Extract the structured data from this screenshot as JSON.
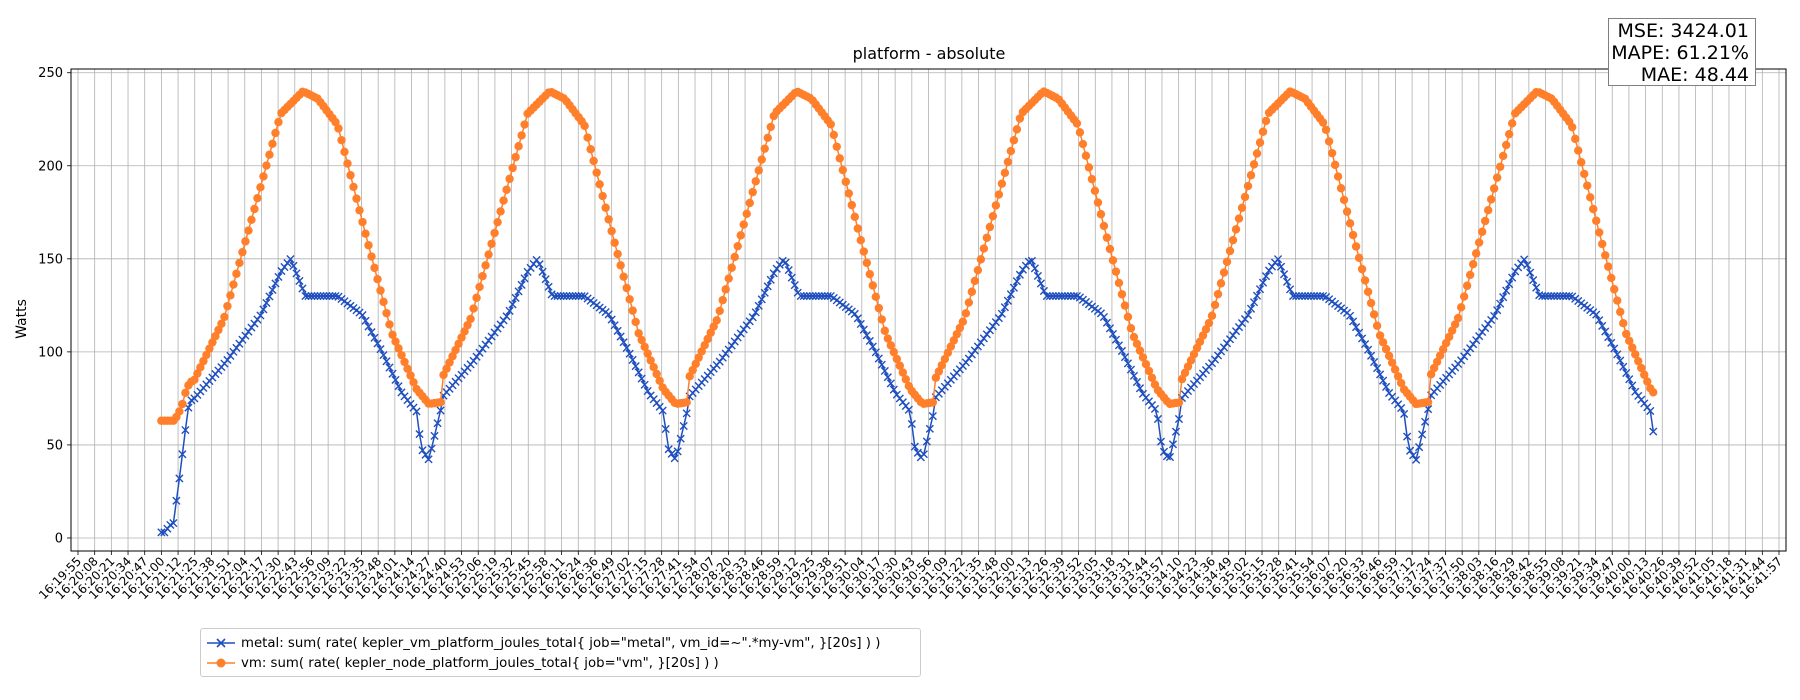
{
  "chart_data": {
    "type": "line",
    "title": "platform - absolute",
    "xlabel": "",
    "ylabel": "Watts",
    "ylim": [
      -7,
      252
    ],
    "yticks": [
      0,
      50,
      100,
      150,
      200,
      250
    ],
    "grid": true,
    "legend_placement": "bottom-left below plot",
    "x_ticks": [
      "16:19:55",
      "16:20:08",
      "16:20:21",
      "16:20:34",
      "16:20:47",
      "16:21:00",
      "16:21:12",
      "16:21:25",
      "16:21:38",
      "16:21:51",
      "16:22:04",
      "16:22:17",
      "16:22:30",
      "16:22:43",
      "16:22:56",
      "16:23:09",
      "16:23:22",
      "16:23:35",
      "16:23:48",
      "16:24:01",
      "16:24:14",
      "16:24:27",
      "16:24:40",
      "16:24:53",
      "16:25:06",
      "16:25:19",
      "16:25:32",
      "16:25:45",
      "16:25:58",
      "16:26:11",
      "16:26:24",
      "16:26:36",
      "16:26:49",
      "16:27:02",
      "16:27:15",
      "16:27:28",
      "16:27:41",
      "16:27:54",
      "16:28:07",
      "16:28:20",
      "16:28:33",
      "16:28:46",
      "16:28:59",
      "16:29:12",
      "16:29:25",
      "16:29:38",
      "16:29:51",
      "16:30:04",
      "16:30:17",
      "16:30:30",
      "16:30:43",
      "16:30:56",
      "16:31:09",
      "16:31:22",
      "16:31:35",
      "16:31:48",
      "16:32:00",
      "16:32:13",
      "16:32:26",
      "16:32:39",
      "16:32:52",
      "16:33:05",
      "16:33:18",
      "16:33:31",
      "16:33:44",
      "16:33:57",
      "16:34:10",
      "16:34:23",
      "16:34:36",
      "16:34:49",
      "16:35:02",
      "16:35:15",
      "16:35:28",
      "16:35:41",
      "16:35:54",
      "16:36:07",
      "16:36:20",
      "16:36:33",
      "16:36:46",
      "16:36:59",
      "16:37:12",
      "16:37:24",
      "16:37:37",
      "16:37:50",
      "16:38:03",
      "16:38:16",
      "16:38:29",
      "16:38:42",
      "16:38:55",
      "16:39:08",
      "16:39:21",
      "16:39:34",
      "16:39:47",
      "16:40:00",
      "16:40:13",
      "16:40:26",
      "16:40:39",
      "16:40:52",
      "16:41:05",
      "16:41:18",
      "16:41:31",
      "16:41:44",
      "16:41:57"
    ],
    "cycle_ticks": 14.8,
    "series": [
      {
        "name": "metal: sum( rate( kepler_vm_platform_joules_total{ job=\"metal\", vm_id=~\".*my-vm\", }[20s] ) )",
        "color": "#1f4fbf",
        "marker": "x",
        "start_tick": 5.0,
        "end_tick": 94.5,
        "startup": [
          3,
          3,
          5,
          7,
          8,
          20,
          32,
          45,
          58,
          70,
          74
        ],
        "cycle_profile": [
          [
            0.0,
            75
          ],
          [
            0.13,
            95
          ],
          [
            0.27,
            120
          ],
          [
            0.35,
            143
          ],
          [
            0.39,
            150
          ],
          [
            0.45,
            130
          ],
          [
            0.58,
            130
          ],
          [
            0.68,
            120
          ],
          [
            0.76,
            100
          ],
          [
            0.84,
            78
          ],
          [
            0.9,
            68
          ],
          [
            0.92,
            48
          ],
          [
            0.95,
            42
          ],
          [
            1.0,
            70
          ]
        ]
      },
      {
        "name": "vm: sum( rate( kepler_node_platform_joules_total{ job=\"vm\", }[20s] ) )",
        "color": "#ff7f2a",
        "marker": "o",
        "start_tick": 5.0,
        "end_tick": 94.5,
        "startup": [
          63,
          63,
          63,
          63,
          63,
          65,
          68,
          72,
          78,
          82,
          84
        ],
        "cycle_profile": [
          [
            0.0,
            85
          ],
          [
            0.12,
            118
          ],
          [
            0.25,
            180
          ],
          [
            0.35,
            228
          ],
          [
            0.44,
            240
          ],
          [
            0.5,
            236
          ],
          [
            0.58,
            222
          ],
          [
            0.7,
            160
          ],
          [
            0.8,
            110
          ],
          [
            0.9,
            80
          ],
          [
            0.95,
            72
          ],
          [
            1.0,
            73
          ]
        ]
      }
    ],
    "stats": {
      "mse": "MSE: 3424.01",
      "mape": "MAPE: 61.21%",
      "mae": "MAE: 48.44"
    }
  }
}
